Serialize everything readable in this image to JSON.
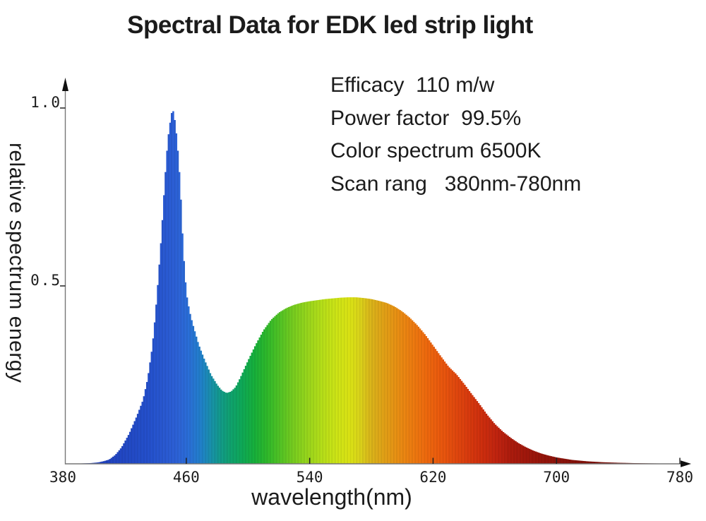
{
  "title": "Spectral Data for EDK led strip light",
  "annotations": {
    "lines": [
      "Efficacy  110 m/w",
      "Power factor  99.5%",
      "Color spectrum 6500K",
      "Scan rang   380nm-780nm"
    ]
  },
  "colors": {
    "text": "#1b1b1b",
    "axis_line": "#777777",
    "tick_mark": "#222222",
    "arrow": "#111111",
    "background": "#ffffff"
  },
  "chart_data": {
    "type": "area",
    "title": "Spectral Data for EDK led strip light",
    "xlabel": "wavelength(nm)",
    "ylabel": "relative spectrum energy",
    "xlim": [
      380,
      780
    ],
    "ylim": [
      0,
      1.05
    ],
    "grid": false,
    "legend": "none",
    "x_ticks": [
      {
        "label": "380",
        "wl": 380
      },
      {
        "label": "460",
        "wl": 460
      },
      {
        "label": "540",
        "wl": 540
      },
      {
        "label": "620",
        "wl": 620
      },
      {
        "label": "700",
        "wl": 700
      },
      {
        "label": "780",
        "wl": 780
      }
    ],
    "y_ticks": [
      {
        "label": "1.0",
        "value": 1.0
      },
      {
        "label": "0.5",
        "value": 0.5
      }
    ],
    "series_name": "relative spectrum energy",
    "features": {
      "blue_led_peak_nm": 451,
      "blue_led_peak_value": 0.99,
      "dip_nm": 486,
      "dip_value": 0.2,
      "phosphor_hump_nm": 565,
      "phosphor_hump_value": 0.47
    },
    "points": [
      [
        380,
        0
      ],
      [
        392,
        0.001
      ],
      [
        398,
        0.002
      ],
      [
        403,
        0.004
      ],
      [
        407,
        0.008
      ],
      [
        410,
        0.012
      ],
      [
        414,
        0.025
      ],
      [
        418,
        0.046
      ],
      [
        423,
        0.085
      ],
      [
        428,
        0.135
      ],
      [
        432,
        0.18
      ],
      [
        435,
        0.24
      ],
      [
        438,
        0.33
      ],
      [
        440,
        0.42
      ],
      [
        442,
        0.53
      ],
      [
        444,
        0.65
      ],
      [
        446,
        0.79
      ],
      [
        448,
        0.91
      ],
      [
        450,
        0.975
      ],
      [
        451,
        0.997
      ],
      [
        452,
        0.985
      ],
      [
        454,
        0.91
      ],
      [
        456,
        0.79
      ],
      [
        458,
        0.6
      ],
      [
        460,
        0.48
      ],
      [
        462,
        0.43
      ],
      [
        464,
        0.395
      ],
      [
        468,
        0.335
      ],
      [
        472,
        0.29
      ],
      [
        476,
        0.25
      ],
      [
        480,
        0.222
      ],
      [
        483,
        0.206
      ],
      [
        486,
        0.199
      ],
      [
        489,
        0.203
      ],
      [
        492,
        0.216
      ],
      [
        495,
        0.242
      ],
      [
        500,
        0.29
      ],
      [
        505,
        0.335
      ],
      [
        510,
        0.375
      ],
      [
        515,
        0.405
      ],
      [
        520,
        0.425
      ],
      [
        525,
        0.438
      ],
      [
        530,
        0.447
      ],
      [
        535,
        0.453
      ],
      [
        540,
        0.457
      ],
      [
        545,
        0.46
      ],
      [
        550,
        0.463
      ],
      [
        555,
        0.465
      ],
      [
        560,
        0.467
      ],
      [
        565,
        0.468
      ],
      [
        570,
        0.468
      ],
      [
        575,
        0.466
      ],
      [
        580,
        0.463
      ],
      [
        585,
        0.458
      ],
      [
        590,
        0.452
      ],
      [
        595,
        0.442
      ],
      [
        600,
        0.428
      ],
      [
        605,
        0.41
      ],
      [
        610,
        0.388
      ],
      [
        615,
        0.362
      ],
      [
        620,
        0.332
      ],
      [
        625,
        0.302
      ],
      [
        630,
        0.273
      ],
      [
        635,
        0.252
      ],
      [
        640,
        0.225
      ],
      [
        645,
        0.196
      ],
      [
        650,
        0.168
      ],
      [
        655,
        0.138
      ],
      [
        660,
        0.112
      ],
      [
        665,
        0.091
      ],
      [
        670,
        0.074
      ],
      [
        675,
        0.059
      ],
      [
        680,
        0.047
      ],
      [
        685,
        0.037
      ],
      [
        690,
        0.029
      ],
      [
        695,
        0.023
      ],
      [
        700,
        0.018
      ],
      [
        710,
        0.011
      ],
      [
        720,
        0.007
      ],
      [
        730,
        0.0045
      ],
      [
        740,
        0.003
      ],
      [
        750,
        0.002
      ],
      [
        760,
        0.0013
      ],
      [
        770,
        0.0008
      ],
      [
        780,
        0.0005
      ]
    ],
    "color_stops": [
      [
        380,
        "#1d37b0"
      ],
      [
        415,
        "#2145c2"
      ],
      [
        435,
        "#2450cc"
      ],
      [
        448,
        "#2a5bd4"
      ],
      [
        455,
        "#2d63d8"
      ],
      [
        462,
        "#2a70d8"
      ],
      [
        470,
        "#2082ca"
      ],
      [
        477,
        "#1793a6"
      ],
      [
        483,
        "#129c86"
      ],
      [
        489,
        "#10a36e"
      ],
      [
        496,
        "#0ea958"
      ],
      [
        504,
        "#16b03c"
      ],
      [
        512,
        "#2eb92b"
      ],
      [
        521,
        "#53c425"
      ],
      [
        530,
        "#7ace1f"
      ],
      [
        539,
        "#9ad71c"
      ],
      [
        548,
        "#b6df19"
      ],
      [
        557,
        "#cde516"
      ],
      [
        566,
        "#dce414"
      ],
      [
        572,
        "#dbd61a"
      ],
      [
        580,
        "#dbb41a"
      ],
      [
        589,
        "#e3a016"
      ],
      [
        598,
        "#ea8d13"
      ],
      [
        607,
        "#ee7b10"
      ],
      [
        616,
        "#ef690e"
      ],
      [
        626,
        "#ea570e"
      ],
      [
        635,
        "#e2480e"
      ],
      [
        644,
        "#d8390e"
      ],
      [
        653,
        "#cd2d0e"
      ],
      [
        662,
        "#c0230f"
      ],
      [
        671,
        "#ab1b0d"
      ],
      [
        689,
        "#97150b"
      ],
      [
        707,
        "#88120a"
      ],
      [
        726,
        "#7d1009"
      ],
      [
        744,
        "#740e08"
      ],
      [
        780,
        "#6b0c06"
      ]
    ]
  }
}
